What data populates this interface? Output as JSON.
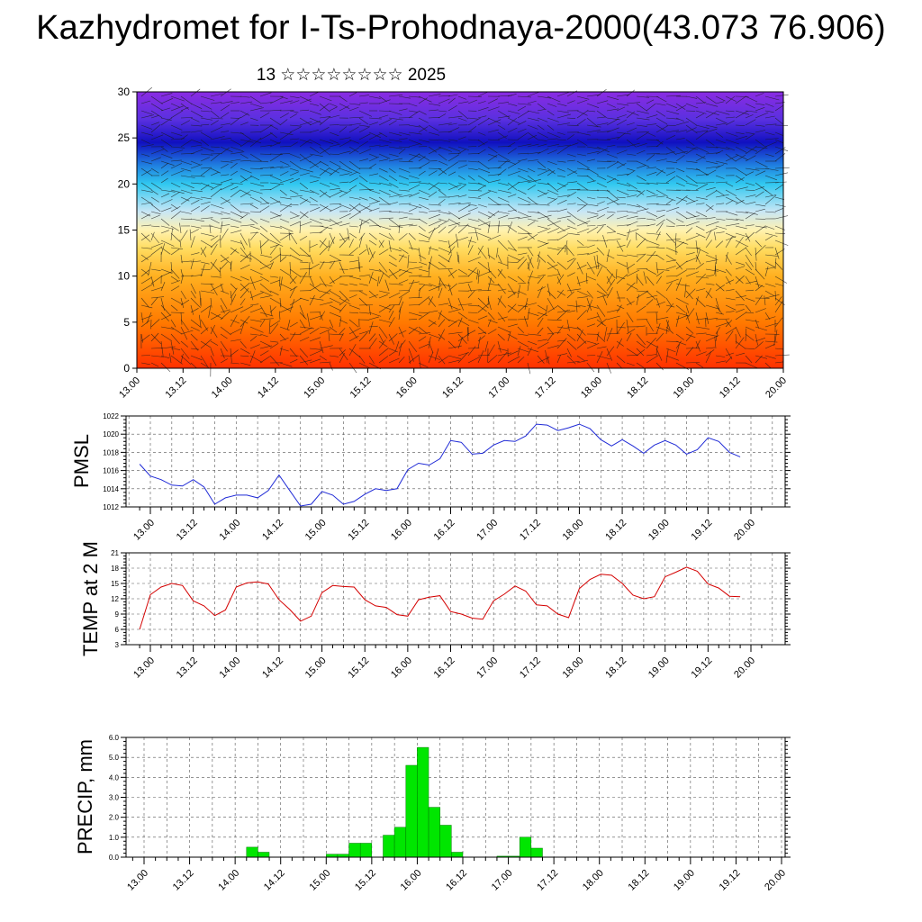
{
  "page": {
    "title": "Kazhydromet for I-Ts-Prohodnaya-2000(43.073 76.906)",
    "subtitle": "13 ☆☆☆☆☆☆☆☆ 2025"
  },
  "colors": {
    "pmsl_line": "#1f2ad6",
    "temp_line": "#d40000",
    "precip_fill": "#00e600",
    "grid": "#555555"
  },
  "chart_data": [
    {
      "id": "cross_section",
      "type": "heatmap",
      "description_of_fill": "vertical temperature colour field with wind barbs",
      "ylim": [
        0,
        30
      ],
      "y_ticks": [
        0,
        5,
        10,
        15,
        20,
        25,
        30
      ],
      "x_tick_labels": [
        "13.00",
        "13.12",
        "14.00",
        "14.12",
        "15.00",
        "15.12",
        "16.00",
        "16.12",
        "17.00",
        "17.12",
        "18.00",
        "18.12",
        "19.00",
        "19.12",
        "20.00"
      ],
      "color_bands": [
        {
          "level": 0,
          "color": "#ff3000"
        },
        {
          "level": 5,
          "color": "#ff7a00"
        },
        {
          "level": 10,
          "color": "#ffb020"
        },
        {
          "level": 13,
          "color": "#ffdc60"
        },
        {
          "level": 15,
          "color": "#fff2b0"
        },
        {
          "level": 17,
          "color": "#c8e6f5"
        },
        {
          "level": 20,
          "color": "#30c8f0"
        },
        {
          "level": 22,
          "color": "#2080e0"
        },
        {
          "level": 24.5,
          "color": "#1010c0"
        },
        {
          "level": 27,
          "color": "#5a30e0"
        },
        {
          "level": 30,
          "color": "#8a2be2"
        }
      ],
      "grid": false
    },
    {
      "id": "pmsl",
      "type": "line",
      "ylabel": "PMSL",
      "ylim": [
        1012,
        1022
      ],
      "y_ticks": [
        1012,
        1014,
        1016,
        1018,
        1020,
        1022
      ],
      "x_tick_labels": [
        "13.00",
        "13.12",
        "14.00",
        "14.12",
        "15.00",
        "15.12",
        "16.00",
        "16.12",
        "17.00",
        "17.12",
        "18.00",
        "18.12",
        "19.00",
        "19.12",
        "20.00"
      ],
      "x_hours": [
        -3,
        0,
        3,
        6,
        9,
        12,
        15,
        18,
        21,
        24,
        27,
        30,
        33,
        36,
        39,
        42,
        45,
        48,
        51,
        54,
        57,
        60,
        63,
        66,
        69,
        72,
        75,
        78,
        81,
        84,
        87,
        90,
        93,
        96,
        99,
        102,
        105,
        108,
        111,
        114,
        117,
        120,
        123,
        126,
        129,
        132,
        135,
        138,
        141,
        144,
        147,
        150,
        153,
        156,
        159,
        162,
        165
      ],
      "values": [
        1016.7,
        1015.4,
        1015.0,
        1014.4,
        1014.3,
        1015.0,
        1014.2,
        1012.3,
        1013.0,
        1013.3,
        1013.3,
        1013.0,
        1013.8,
        1015.5,
        1013.8,
        1012.1,
        1012.3,
        1013.7,
        1013.3,
        1012.3,
        1012.6,
        1013.4,
        1014.0,
        1013.8,
        1014.0,
        1016.1,
        1016.8,
        1016.6,
        1017.3,
        1019.3,
        1019.1,
        1017.8,
        1017.9,
        1018.8,
        1019.3,
        1019.2,
        1019.8,
        1021.1,
        1021.0,
        1020.4,
        1020.7,
        1021.1,
        1020.6,
        1019.4,
        1018.7,
        1019.4,
        1018.7,
        1017.9,
        1018.8,
        1019.3,
        1018.8,
        1017.8,
        1018.3,
        1019.6,
        1019.2,
        1018.0,
        1017.5
      ],
      "grid": true
    },
    {
      "id": "temp",
      "type": "line",
      "ylabel": "TEMP at 2 M",
      "ylim": [
        3,
        21
      ],
      "y_ticks": [
        3,
        6,
        9,
        12,
        15,
        18,
        21
      ],
      "x_tick_labels": [
        "13.00",
        "13.12",
        "14.00",
        "14.12",
        "15.00",
        "15.12",
        "16.00",
        "16.12",
        "17.00",
        "17.12",
        "18.00",
        "18.12",
        "19.00",
        "19.12",
        "20.00"
      ],
      "x_hours": [
        -3,
        0,
        3,
        6,
        9,
        12,
        15,
        18,
        21,
        24,
        27,
        30,
        33,
        36,
        39,
        42,
        45,
        48,
        51,
        54,
        57,
        60,
        63,
        66,
        69,
        72,
        75,
        78,
        81,
        84,
        87,
        90,
        93,
        96,
        99,
        102,
        105,
        108,
        111,
        114,
        117,
        120,
        123,
        126,
        129,
        132,
        135,
        138,
        141,
        144,
        147,
        150,
        153,
        156,
        159,
        162,
        165
      ],
      "values": [
        6.0,
        12.8,
        14.3,
        15.0,
        14.6,
        11.6,
        10.6,
        8.7,
        9.8,
        14.3,
        15.1,
        15.3,
        14.9,
        11.8,
        9.9,
        7.6,
        8.6,
        13.2,
        14.6,
        14.4,
        14.3,
        11.8,
        10.6,
        10.3,
        8.9,
        8.6,
        11.8,
        12.3,
        12.6,
        9.5,
        9.0,
        8.2,
        8.0,
        11.6,
        12.9,
        14.5,
        13.5,
        10.8,
        10.6,
        9.0,
        8.3,
        14.0,
        15.8,
        16.8,
        16.6,
        15.0,
        12.7,
        12.0,
        12.4,
        16.3,
        17.2,
        18.2,
        17.4,
        14.9,
        14.1,
        12.5,
        12.4
      ],
      "grid": true
    },
    {
      "id": "precip",
      "type": "bar",
      "ylabel": "PRECIP, mm",
      "ylim": [
        0,
        6
      ],
      "y_tick_labels": [
        "0.0",
        "1.0",
        "2.0",
        "3.0",
        "4.0",
        "5.0",
        "6.0"
      ],
      "x_tick_labels": [
        "13.00",
        "13.12",
        "14.00",
        "14.12",
        "15.00",
        "15.12",
        "16.00",
        "16.12",
        "17.00",
        "17.12",
        "18.00",
        "18.12",
        "19.00",
        "19.12",
        "20.00"
      ],
      "bar_hours_start": [
        -3,
        0,
        3,
        6,
        9,
        12,
        15,
        18,
        21,
        24,
        27,
        30,
        33,
        36,
        39,
        42,
        45,
        48,
        51,
        54,
        57,
        60,
        63,
        66,
        69,
        72,
        75,
        78,
        81,
        84,
        87,
        90,
        93,
        96,
        99,
        102,
        105,
        108,
        111,
        114,
        117,
        120,
        123,
        126,
        129,
        132,
        135,
        138,
        141,
        144,
        147,
        150,
        153,
        156,
        159,
        162,
        165,
        168
      ],
      "values": [
        0,
        0,
        0,
        0,
        0,
        0,
        0,
        0,
        0,
        0.02,
        0.5,
        0.25,
        0,
        0,
        0,
        0,
        0,
        0.15,
        0.15,
        0.7,
        0.7,
        0,
        1.1,
        1.5,
        4.6,
        5.5,
        2.5,
        1.6,
        0.25,
        0,
        0,
        0,
        0.05,
        0.05,
        1.0,
        0.45,
        0,
        0,
        0,
        0,
        0,
        0,
        0,
        0,
        0,
        0,
        0,
        0,
        0,
        0,
        0,
        0,
        0,
        0,
        0,
        0,
        0,
        0
      ],
      "grid": true
    }
  ]
}
